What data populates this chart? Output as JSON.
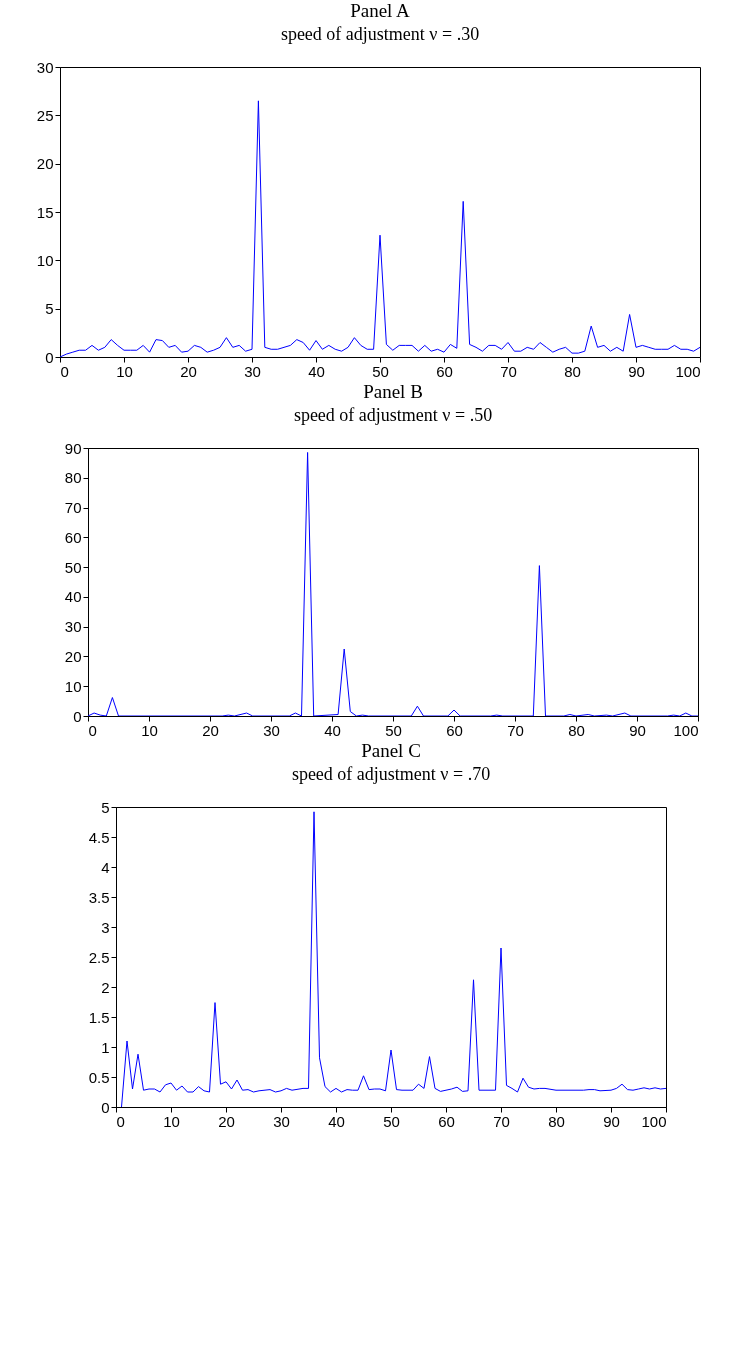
{
  "chart_data": [
    {
      "type": "line",
      "title": "Panel A",
      "subtitle": "speed of adjustment ν = .30",
      "color": "#0000ff",
      "x": [
        0,
        1,
        2,
        3,
        4,
        5,
        6,
        7,
        8,
        9,
        10,
        11,
        12,
        13,
        14,
        15,
        16,
        17,
        18,
        19,
        20,
        21,
        22,
        23,
        24,
        25,
        26,
        27,
        28,
        29,
        30,
        31,
        32,
        33,
        34,
        35,
        36,
        37,
        38,
        39,
        40,
        41,
        42,
        43,
        44,
        45,
        46,
        47,
        48,
        49,
        50,
        51,
        52,
        53,
        54,
        55,
        56,
        57,
        58,
        59,
        60,
        61,
        62,
        63,
        64,
        65,
        66,
        67,
        68,
        69,
        70,
        71,
        72,
        73,
        74,
        75,
        76,
        77,
        78,
        79,
        80,
        81,
        82,
        83,
        84,
        85,
        86,
        87,
        88,
        89,
        90,
        91,
        92,
        93,
        94,
        95,
        96,
        97,
        98,
        99,
        100
      ],
      "values": [
        0,
        0.3,
        0.5,
        0.7,
        0.7,
        1.2,
        0.7,
        1.0,
        1.8,
        1.2,
        0.7,
        0.7,
        0.7,
        1.2,
        0.5,
        1.8,
        1.7,
        1.0,
        1.2,
        0.5,
        0.6,
        1.2,
        1.0,
        0.5,
        0.7,
        1.0,
        2.0,
        1.0,
        1.2,
        0.6,
        0.8,
        26.5,
        1.0,
        0.8,
        0.8,
        1.0,
        1.2,
        1.8,
        1.5,
        0.7,
        1.7,
        0.8,
        1.2,
        0.8,
        0.6,
        1.0,
        2.0,
        1.2,
        0.8,
        0.8,
        12.6,
        1.3,
        0.7,
        1.2,
        1.2,
        1.2,
        0.6,
        1.2,
        0.6,
        0.8,
        0.5,
        1.3,
        0.9,
        16.1,
        1.3,
        1.0,
        0.6,
        1.2,
        1.2,
        0.8,
        1.5,
        0.6,
        0.6,
        1.0,
        0.8,
        1.5,
        1.0,
        0.5,
        0.8,
        1.0,
        0.4,
        0.4,
        0.6,
        3.2,
        1.0,
        1.2,
        0.6,
        1.0,
        0.6,
        4.4,
        1.0,
        1.2,
        1.0,
        0.8,
        0.8,
        0.8,
        1.2,
        0.8,
        0.8,
        0.6,
        1.0
      ],
      "xlim": [
        0,
        100
      ],
      "xticks": [
        0,
        10,
        20,
        30,
        40,
        50,
        60,
        70,
        80,
        90,
        100
      ],
      "ylim": [
        0,
        30
      ],
      "yticks": [
        0,
        5,
        10,
        15,
        20,
        25,
        30
      ]
    },
    {
      "type": "line",
      "title": "Panel B",
      "subtitle": "speed of adjustment ν = .50",
      "color": "#0000ff",
      "x": [
        0,
        1,
        2,
        3,
        4,
        5,
        22,
        23,
        24,
        26,
        27,
        33,
        34,
        35,
        36,
        37,
        41,
        42,
        43,
        44,
        45,
        46,
        53,
        54,
        55,
        59,
        60,
        61,
        66,
        67,
        68,
        73,
        74,
        75,
        78,
        79,
        80,
        82,
        83,
        85,
        86,
        88,
        89,
        95,
        96,
        97,
        98,
        99,
        100
      ],
      "values": [
        0,
        1,
        0.3,
        0,
        6.2,
        0,
        0,
        0.3,
        0,
        1,
        0,
        0,
        1,
        0,
        88.5,
        0,
        0.5,
        22.5,
        1.5,
        0,
        0.3,
        0,
        0,
        3.3,
        0,
        0,
        2,
        0,
        0,
        0.3,
        0,
        0,
        50.5,
        0,
        0,
        0.5,
        0,
        0.5,
        0,
        0.3,
        0,
        1,
        0,
        0,
        0.3,
        0,
        1,
        0,
        0
      ],
      "xlim": [
        0,
        100
      ],
      "xticks": [
        0,
        10,
        20,
        30,
        40,
        50,
        60,
        70,
        80,
        90,
        100
      ],
      "ylim": [
        0,
        90
      ],
      "yticks": [
        0,
        10,
        20,
        30,
        40,
        50,
        60,
        70,
        80,
        90
      ]
    },
    {
      "type": "line",
      "title": "Panel C",
      "subtitle": "speed of adjustment ν = .70",
      "color": "#0000ff",
      "x": [
        1,
        2,
        3,
        4,
        5,
        6,
        7,
        8,
        9,
        10,
        11,
        12,
        13,
        14,
        15,
        16,
        17,
        18,
        19,
        20,
        21,
        22,
        23,
        24,
        25,
        26,
        28,
        29,
        30,
        31,
        32,
        34,
        35,
        36,
        37,
        38,
        39,
        40,
        41,
        42,
        43,
        44,
        45,
        46,
        47,
        48,
        49,
        50,
        51,
        52,
        54,
        55,
        56,
        57,
        58,
        59,
        60,
        61,
        62,
        63,
        64,
        65,
        66,
        69,
        70,
        71,
        72,
        73,
        74,
        75,
        76,
        77,
        78,
        80,
        85,
        86,
        87,
        88,
        90,
        91,
        92,
        93,
        94,
        95,
        96,
        97,
        98,
        99,
        100
      ],
      "values": [
        0,
        1.1,
        0.3,
        0.88,
        0.28,
        0.3,
        0.3,
        0.25,
        0.37,
        0.4,
        0.28,
        0.35,
        0.25,
        0.25,
        0.34,
        0.27,
        0.25,
        1.74,
        0.38,
        0.42,
        0.3,
        0.45,
        0.28,
        0.29,
        0.25,
        0.27,
        0.29,
        0.25,
        0.27,
        0.31,
        0.28,
        0.31,
        0.31,
        4.92,
        0.82,
        0.34,
        0.25,
        0.31,
        0.25,
        0.29,
        0.28,
        0.28,
        0.52,
        0.29,
        0.3,
        0.3,
        0.27,
        0.95,
        0.29,
        0.28,
        0.28,
        0.38,
        0.31,
        0.84,
        0.31,
        0.26,
        0.28,
        0.3,
        0.33,
        0.26,
        0.27,
        2.12,
        0.28,
        0.28,
        2.65,
        0.36,
        0.31,
        0.25,
        0.48,
        0.33,
        0.3,
        0.31,
        0.31,
        0.28,
        0.28,
        0.29,
        0.29,
        0.27,
        0.28,
        0.31,
        0.38,
        0.29,
        0.28,
        0.3,
        0.32,
        0.3,
        0.32,
        0.3,
        0.31
      ],
      "xlim": [
        0,
        100
      ],
      "xticks": [
        0,
        10,
        20,
        30,
        40,
        50,
        60,
        70,
        80,
        90,
        100
      ],
      "ylim": [
        0,
        5
      ],
      "yticks": [
        0,
        0.5,
        1,
        1.5,
        2,
        2.5,
        3,
        3.5,
        4,
        4.5,
        5
      ]
    }
  ]
}
